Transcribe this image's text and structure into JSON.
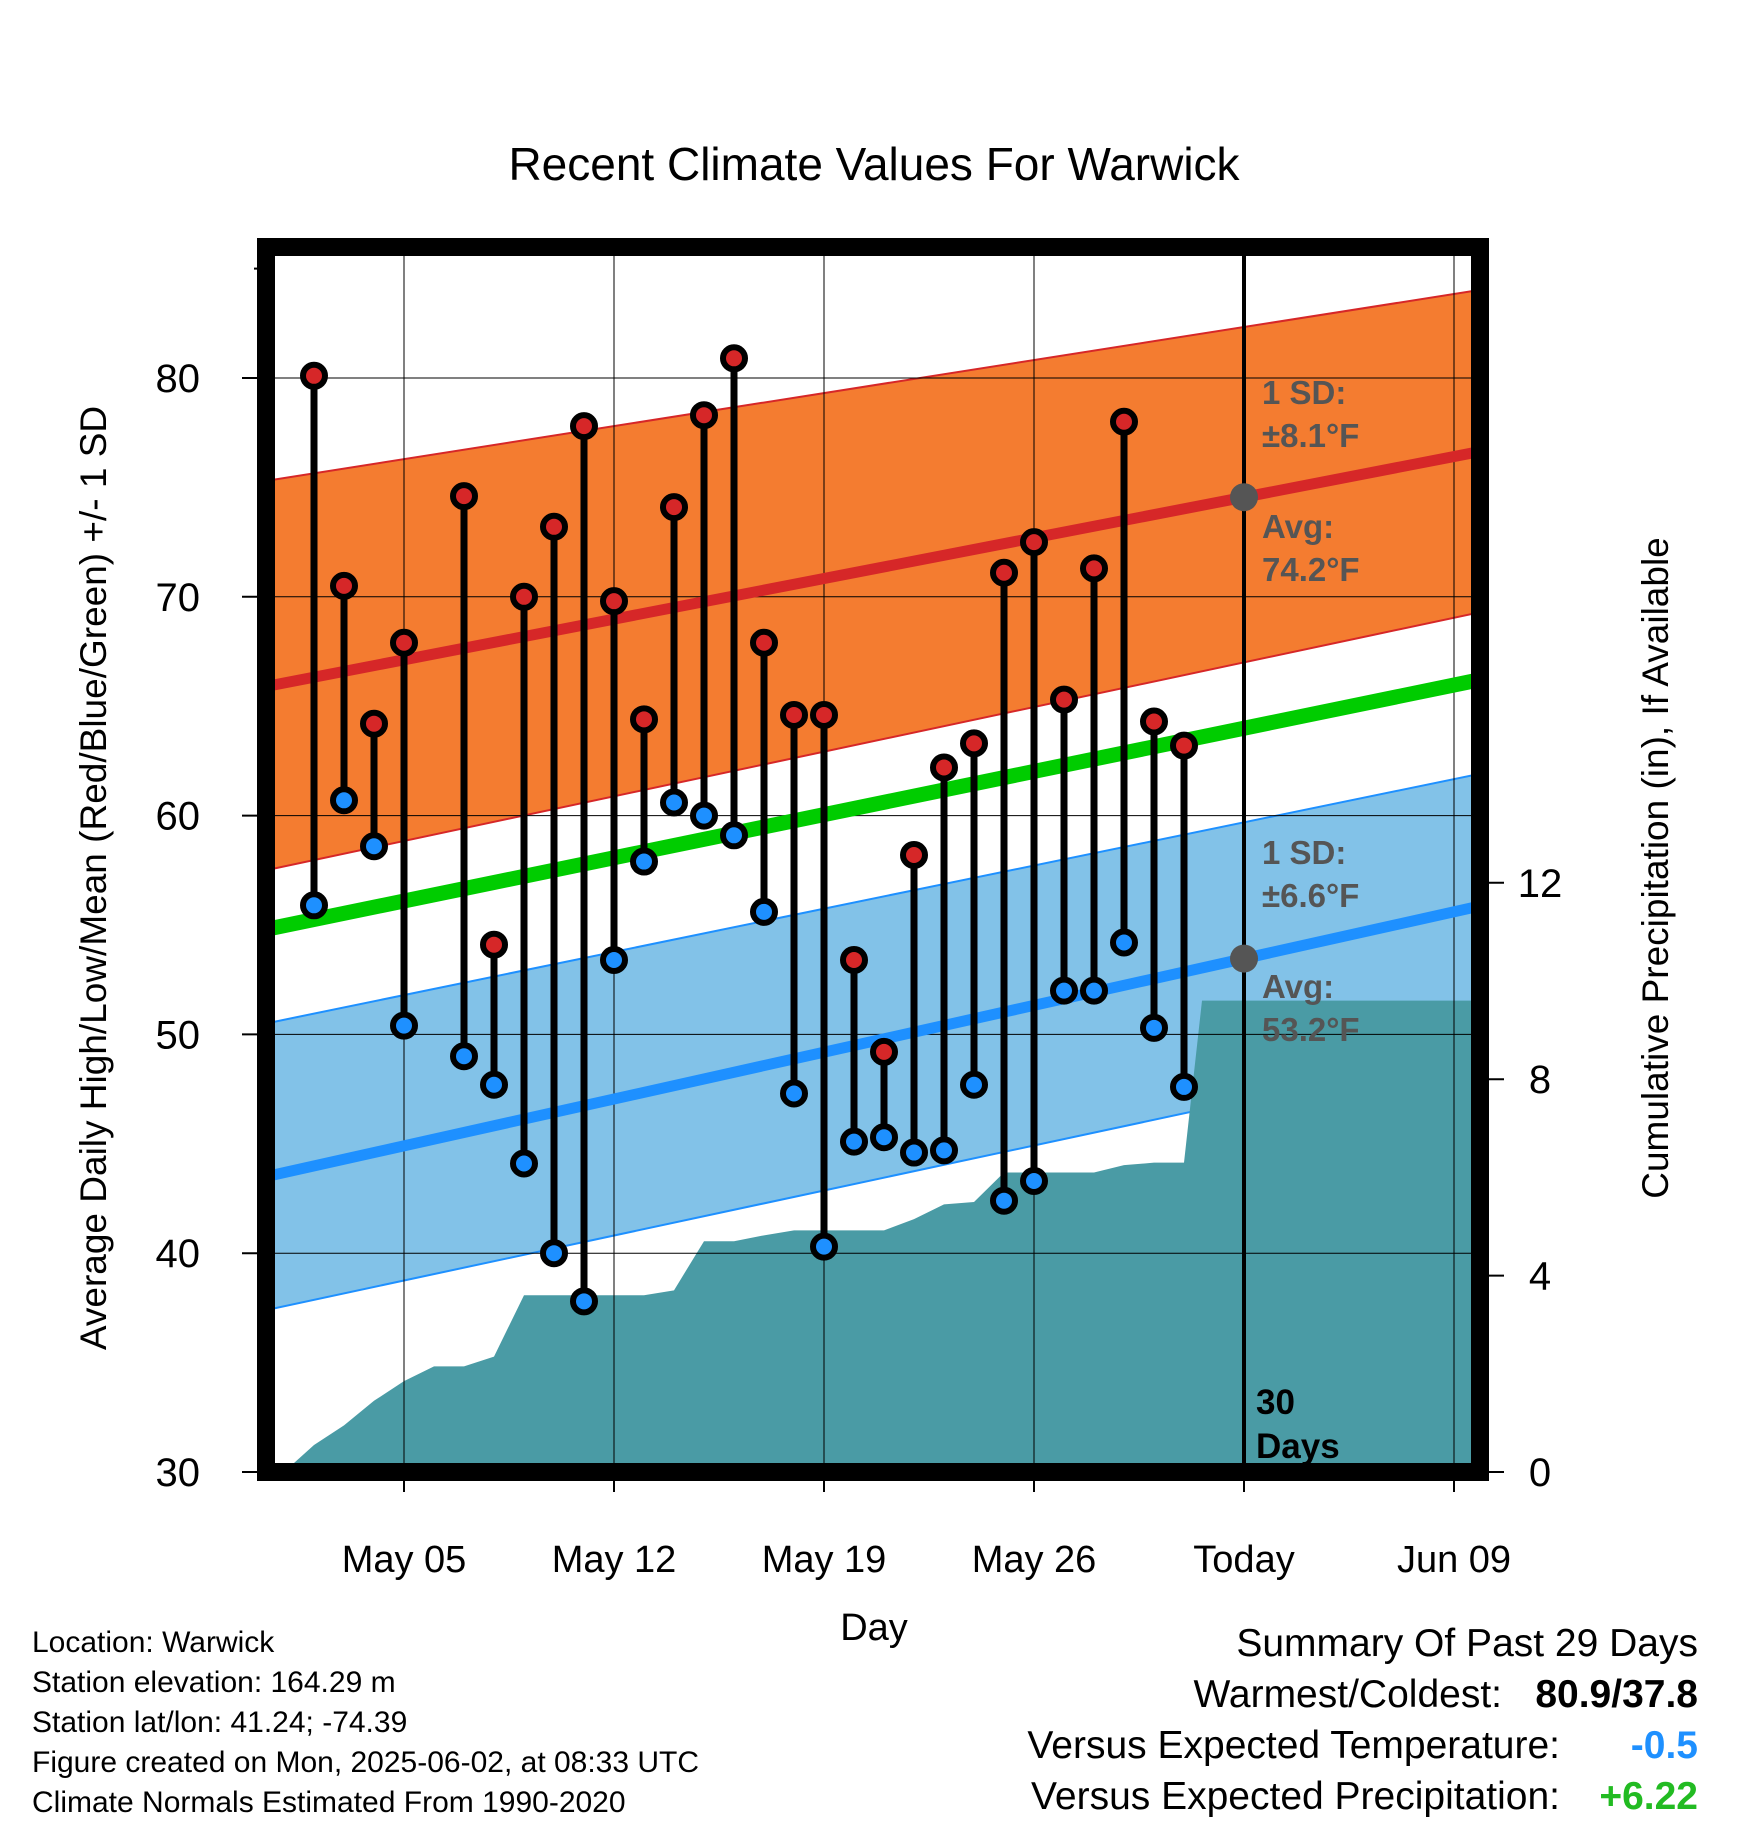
{
  "chart_data": {
    "type": "line",
    "title": "Recent Climate Values For Warwick",
    "xlabel": "Day",
    "ylabel": "Average Daily High/Low/Mean (Red/Blue/Green) +/- 1 SD",
    "y2label": "Cumulative Precipitation (in), If Available",
    "ylim": [
      30,
      86
    ],
    "y2lim": [
      0,
      20
    ],
    "xlim_days": [
      -0.6,
      41.6
    ],
    "y_ticks": [
      "30",
      "40",
      "50",
      "60",
      "70",
      "80"
    ],
    "y2_ticks": [
      "0",
      "4",
      "8",
      "12"
    ],
    "x_ticks": [
      {
        "label": "May 05",
        "day": 4
      },
      {
        "label": "May 12",
        "day": 11
      },
      {
        "label": "May 19",
        "day": 18
      },
      {
        "label": "May 26",
        "day": 25
      },
      {
        "label": "Today",
        "day": 32
      },
      {
        "label": "Jun 09",
        "day": 39
      }
    ],
    "today_day": 32,
    "days": [
      1,
      2,
      3,
      4,
      5,
      6,
      7,
      8,
      9,
      10,
      11,
      12,
      13,
      14,
      15,
      16,
      17,
      18,
      19,
      20,
      21,
      22,
      23,
      24,
      25,
      26,
      27,
      28,
      29,
      30,
      31
    ],
    "series": [
      {
        "name": "High",
        "color": "#d62728",
        "values": [
          80.1,
          70.5,
          64.2,
          67.9,
          null,
          74.6,
          54.1,
          70.0,
          73.2,
          77.8,
          69.8,
          64.4,
          74.1,
          78.3,
          80.9,
          67.9,
          64.6,
          64.6,
          53.4,
          49.2,
          58.2,
          62.2,
          63.3,
          71.1,
          72.5,
          65.3,
          71.3,
          78.0,
          64.3,
          63.2,
          null
        ]
      },
      {
        "name": "Low",
        "color": "#1e90ff",
        "values": [
          55.9,
          60.7,
          58.6,
          50.4,
          null,
          49.0,
          47.7,
          44.1,
          40.0,
          37.8,
          53.4,
          57.9,
          60.6,
          60.0,
          59.1,
          55.6,
          47.3,
          40.3,
          45.1,
          45.3,
          44.6,
          44.7,
          47.7,
          42.4,
          43.3,
          52.0,
          52.0,
          54.2,
          50.3,
          47.6,
          null
        ]
      }
    ],
    "normals": {
      "high_avg": [
        65.9,
        77.1
      ],
      "high_sd_band": [
        [
          57.5,
          75.3
        ],
        [
          69.8,
          84.4
        ]
      ],
      "low_avg": [
        43.5,
        56.4
      ],
      "low_sd_band": [
        [
          37.4,
          50.5
        ],
        [
          49.8,
          62.4
        ]
      ],
      "mean_avg": [
        54.8,
        66.7
      ]
    },
    "precip_cumulative": {
      "color": "#4a9ba5",
      "points": [
        [
          0,
          0.0
        ],
        [
          1,
          0.55
        ],
        [
          2,
          0.95
        ],
        [
          3,
          1.45
        ],
        [
          4,
          1.85
        ],
        [
          5,
          2.15
        ],
        [
          6,
          2.15
        ],
        [
          7,
          2.35
        ],
        [
          8,
          3.6
        ],
        [
          8.5,
          3.6
        ],
        [
          9,
          3.6
        ],
        [
          10,
          3.6
        ],
        [
          11,
          3.6
        ],
        [
          12,
          3.6
        ],
        [
          13,
          3.7
        ],
        [
          14,
          4.7
        ],
        [
          15,
          4.7
        ],
        [
          16,
          4.82
        ],
        [
          17,
          4.92
        ],
        [
          18,
          4.92
        ],
        [
          19,
          4.92
        ],
        [
          20,
          4.92
        ],
        [
          21,
          5.15
        ],
        [
          22,
          5.45
        ],
        [
          23,
          5.5
        ],
        [
          24,
          6.1
        ],
        [
          25,
          6.1
        ],
        [
          26,
          6.1
        ],
        [
          27,
          6.1
        ],
        [
          28,
          6.25
        ],
        [
          29,
          6.3
        ],
        [
          30,
          6.3
        ],
        [
          30.6,
          9.6
        ],
        [
          31,
          9.6
        ],
        [
          32,
          9.6
        ],
        [
          41.6,
          9.6
        ]
      ]
    },
    "annotations": {
      "high_sd": {
        "line1": "1 SD:",
        "line2": "±8.1°F"
      },
      "high_avg": {
        "line1": "Avg:",
        "line2": "74.2°F"
      },
      "low_sd": {
        "line1": "1 SD:",
        "line2": "±6.6°F"
      },
      "low_avg": {
        "line1": "Avg:",
        "line2": "53.2°F"
      },
      "days_label": {
        "line1": "30",
        "line2": "Days"
      }
    },
    "colors": {
      "high_band": "#f47c30",
      "high_line": "#d62728",
      "low_band": "#82c2e8",
      "low_line": "#1e90ff",
      "mean_line": "#00cc00",
      "precip": "#4a9ba5",
      "annotation_text": "#555555"
    }
  },
  "info": {
    "location": "Location: Warwick",
    "elevation": "Station elevation: 164.29 m",
    "latlon": "Station lat/lon: 41.24; -74.39",
    "created": "Figure created on Mon, 2025-06-02, at 08:33 UTC",
    "normals": "Climate Normals Estimated From 1990-2020"
  },
  "summary": {
    "title": "Summary Of Past 29 Days",
    "warm_cold_label": "Warmest/Coldest:",
    "warm_cold_value": "80.9/37.8",
    "temp_label": "Versus Expected Temperature:",
    "temp_value": "-0.5",
    "temp_color": "#1e90ff",
    "precip_label": "Versus Expected Precipitation:",
    "precip_value": "+6.22",
    "precip_color": "#22bb22"
  }
}
